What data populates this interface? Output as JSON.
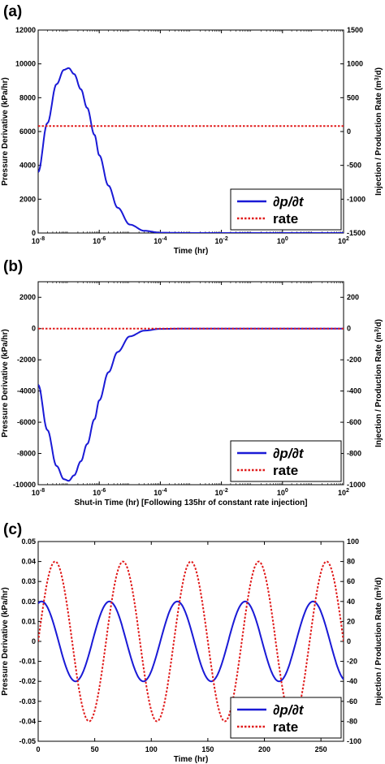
{
  "chart_data": [
    {
      "panel_label": "(a)",
      "type": "line",
      "xscale": "log",
      "xlim": [
        1e-08,
        100
      ],
      "xticks": [
        {
          "value": 1e-08,
          "base": "10",
          "exp": "-8"
        },
        {
          "value": 1e-06,
          "base": "10",
          "exp": "-6"
        },
        {
          "value": 0.0001,
          "base": "10",
          "exp": "-4"
        },
        {
          "value": 0.01,
          "base": "10",
          "exp": "-2"
        },
        {
          "value": 1,
          "base": "10",
          "exp": "0"
        },
        {
          "value": 100,
          "base": "10",
          "exp": "2"
        }
      ],
      "ylim": [
        0,
        12000
      ],
      "yticks": [
        0,
        2000,
        4000,
        6000,
        8000,
        10000,
        12000
      ],
      "y2lim": [
        -1500,
        1500
      ],
      "y2ticks": [
        -1500,
        -1000,
        -500,
        0,
        500,
        1000,
        1500
      ],
      "xlabel": "Time (hr)",
      "ylabel": "Pressure Derivative (kPa/hr)",
      "y2label_pre": "Injection / Production Rate (m",
      "y2label_sup": "3",
      "y2label_post": "/d)",
      "legend_position": "lower-right",
      "series": [
        {
          "name": "∂p/∂t",
          "color": "#1a1ad6",
          "style": "solid",
          "axis": "left",
          "x": [
            1e-08,
            2e-08,
            4e-08,
            7e-08,
            1e-07,
            1.5e-07,
            2.5e-07,
            4e-07,
            7e-07,
            1e-06,
            2e-06,
            4e-06,
            1e-05,
            3e-05,
            0.0001,
            0.001,
            0.01,
            0.1,
            1,
            10,
            100
          ],
          "y": [
            3600,
            6500,
            8800,
            9650,
            9750,
            9400,
            8500,
            7400,
            5800,
            4600,
            2800,
            1500,
            500,
            130,
            20,
            0,
            0,
            0,
            0,
            0,
            0
          ]
        },
        {
          "name": "rate",
          "color": "#e01a1a",
          "style": "dotted",
          "axis": "right",
          "x": [
            1e-08,
            100
          ],
          "y": [
            80,
            80
          ]
        }
      ]
    },
    {
      "panel_label": "(b)",
      "type": "line",
      "xscale": "log",
      "xlim": [
        1e-08,
        100
      ],
      "xticks": [
        {
          "value": 1e-08,
          "base": "10",
          "exp": "-8"
        },
        {
          "value": 1e-06,
          "base": "10",
          "exp": "-6"
        },
        {
          "value": 0.0001,
          "base": "10",
          "exp": "-4"
        },
        {
          "value": 0.01,
          "base": "10",
          "exp": "-2"
        },
        {
          "value": 1,
          "base": "10",
          "exp": "0"
        },
        {
          "value": 100,
          "base": "10",
          "exp": "2"
        }
      ],
      "ylim": [
        -10000,
        3000
      ],
      "yticks": [
        -10000,
        -8000,
        -6000,
        -4000,
        -2000,
        0,
        2000
      ],
      "y2lim": [
        -1000,
        300
      ],
      "y2ticks": [
        -1000,
        -800,
        -600,
        -400,
        -200,
        0,
        200
      ],
      "xlabel": "Shut-in Time (hr) [Following 135hr of constant rate injection]",
      "ylabel": "Pressure Derivative (kPa/hr)",
      "y2label_pre": "Injection / Production Rate (m",
      "y2label_sup": "3",
      "y2label_post": "/d)",
      "legend_position": "lower-right",
      "series": [
        {
          "name": "∂p/∂t",
          "color": "#1a1ad6",
          "style": "solid",
          "axis": "left",
          "x": [
            1e-08,
            2e-08,
            4e-08,
            7e-08,
            1e-07,
            1.5e-07,
            2.5e-07,
            4e-07,
            7e-07,
            1e-06,
            2e-06,
            4e-06,
            1e-05,
            3e-05,
            0.0001,
            0.001,
            0.01,
            0.1,
            1,
            10,
            100
          ],
          "y": [
            -3600,
            -6500,
            -8800,
            -9650,
            -9750,
            -9400,
            -8500,
            -7400,
            -5800,
            -4600,
            -2800,
            -1500,
            -500,
            -130,
            -20,
            0,
            0,
            0,
            0,
            0,
            0
          ]
        },
        {
          "name": "rate",
          "color": "#e01a1a",
          "style": "dotted",
          "axis": "right",
          "x": [
            1e-08,
            100
          ],
          "y": [
            0,
            0
          ]
        }
      ]
    },
    {
      "panel_label": "(c)",
      "type": "line",
      "xscale": "linear",
      "xlim": [
        0,
        270
      ],
      "xticks": [
        {
          "value": 0,
          "base": "0",
          "exp": ""
        },
        {
          "value": 50,
          "base": "50",
          "exp": ""
        },
        {
          "value": 100,
          "base": "100",
          "exp": ""
        },
        {
          "value": 150,
          "base": "150",
          "exp": ""
        },
        {
          "value": 200,
          "base": "200",
          "exp": ""
        },
        {
          "value": 250,
          "base": "250",
          "exp": ""
        }
      ],
      "ylim": [
        -0.05,
        0.05
      ],
      "yticks": [
        -0.05,
        -0.04,
        -0.03,
        -0.02,
        -0.01,
        0,
        0.01,
        0.02,
        0.03,
        0.04,
        0.05
      ],
      "y2lim": [
        -100,
        100
      ],
      "y2ticks": [
        -100,
        -80,
        -60,
        -40,
        -20,
        0,
        20,
        40,
        60,
        80,
        100
      ],
      "xlabel": "Time (hr)",
      "ylabel": "Pressure Derivative (kPa/hr)",
      "y2label_pre": "Injection / Production Rate (m",
      "y2label_sup": "3",
      "y2label_post": "/d)",
      "legend_position": "lower-right",
      "series": [
        {
          "name": "∂p/∂t",
          "color": "#1a1ad6",
          "style": "solid",
          "axis": "left",
          "function": "sine",
          "amplitude": 0.02,
          "period": 60,
          "phase_peak_at": 3
        },
        {
          "name": "rate",
          "color": "#e01a1a",
          "style": "dotted",
          "axis": "right",
          "function": "sine",
          "amplitude": 80,
          "period": 60,
          "phase_peak_at": 15
        }
      ]
    }
  ]
}
